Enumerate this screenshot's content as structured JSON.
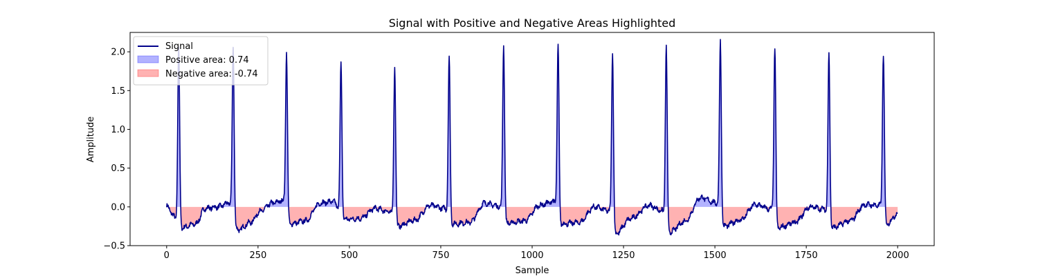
{
  "chart_data": {
    "type": "line",
    "title": "Signal with Positive and Negative Areas Highlighted",
    "xlabel": "Sample",
    "ylabel": "Amplitude",
    "xlim": [
      -100,
      2100
    ],
    "ylim": [
      -0.5,
      2.25
    ],
    "x_ticks": [
      0,
      250,
      500,
      750,
      1000,
      1250,
      1500,
      1750,
      2000
    ],
    "y_ticks": [
      -0.5,
      0.0,
      0.5,
      1.0,
      1.5,
      2.0
    ],
    "y_tick_labels": [
      "−0.5",
      "0.0",
      "0.5",
      "1.0",
      "1.5",
      "2.0"
    ],
    "grid": false,
    "legend_position": "top-left",
    "n_samples": 2000,
    "peaks": [
      {
        "x": 33,
        "y": 2.06
      },
      {
        "x": 182,
        "y": 2.06
      },
      {
        "x": 328,
        "y": 2.0
      },
      {
        "x": 477,
        "y": 1.84
      },
      {
        "x": 624,
        "y": 1.81
      },
      {
        "x": 773,
        "y": 1.93
      },
      {
        "x": 922,
        "y": 2.09
      },
      {
        "x": 1071,
        "y": 2.07
      },
      {
        "x": 1220,
        "y": 1.99
      },
      {
        "x": 1367,
        "y": 2.06
      },
      {
        "x": 1515,
        "y": 2.14
      },
      {
        "x": 1664,
        "y": 2.06
      },
      {
        "x": 1812,
        "y": 1.98
      },
      {
        "x": 1961,
        "y": 1.98
      }
    ],
    "baseline_dips": [
      {
        "x": 40,
        "y": -0.27
      },
      {
        "x": 80,
        "y": -0.22
      },
      {
        "x": 105,
        "y": -0.02
      },
      {
        "x": 140,
        "y": 0.0
      },
      {
        "x": 170,
        "y": 0.05
      },
      {
        "x": 195,
        "y": -0.3
      },
      {
        "x": 230,
        "y": -0.2
      },
      {
        "x": 255,
        "y": -0.06
      },
      {
        "x": 290,
        "y": 0.05
      },
      {
        "x": 318,
        "y": 0.08
      },
      {
        "x": 338,
        "y": -0.22
      },
      {
        "x": 380,
        "y": -0.18
      },
      {
        "x": 420,
        "y": 0.05
      },
      {
        "x": 455,
        "y": 0.07
      },
      {
        "x": 487,
        "y": -0.16
      },
      {
        "x": 530,
        "y": -0.15
      },
      {
        "x": 570,
        "y": -0.02
      },
      {
        "x": 610,
        "y": -0.06
      },
      {
        "x": 632,
        "y": -0.25
      },
      {
        "x": 680,
        "y": -0.17
      },
      {
        "x": 720,
        "y": 0.02
      },
      {
        "x": 760,
        "y": -0.02
      },
      {
        "x": 782,
        "y": -0.22
      },
      {
        "x": 830,
        "y": -0.2
      },
      {
        "x": 870,
        "y": 0.05
      },
      {
        "x": 910,
        "y": 0.01
      },
      {
        "x": 930,
        "y": -0.21
      },
      {
        "x": 980,
        "y": -0.18
      },
      {
        "x": 1020,
        "y": 0.02
      },
      {
        "x": 1060,
        "y": 0.07
      },
      {
        "x": 1080,
        "y": -0.22
      },
      {
        "x": 1130,
        "y": -0.2
      },
      {
        "x": 1170,
        "y": 0.0
      },
      {
        "x": 1210,
        "y": -0.05
      },
      {
        "x": 1228,
        "y": -0.35
      },
      {
        "x": 1270,
        "y": -0.15
      },
      {
        "x": 1320,
        "y": 0.02
      },
      {
        "x": 1355,
        "y": -0.05
      },
      {
        "x": 1375,
        "y": -0.33
      },
      {
        "x": 1420,
        "y": -0.18
      },
      {
        "x": 1460,
        "y": 0.12
      },
      {
        "x": 1505,
        "y": 0.05
      },
      {
        "x": 1524,
        "y": -0.25
      },
      {
        "x": 1570,
        "y": -0.17
      },
      {
        "x": 1610,
        "y": 0.03
      },
      {
        "x": 1655,
        "y": -0.03
      },
      {
        "x": 1672,
        "y": -0.27
      },
      {
        "x": 1720,
        "y": -0.2
      },
      {
        "x": 1760,
        "y": 0.0
      },
      {
        "x": 1800,
        "y": -0.03
      },
      {
        "x": 1820,
        "y": -0.27
      },
      {
        "x": 1870,
        "y": -0.18
      },
      {
        "x": 1910,
        "y": 0.03
      },
      {
        "x": 1950,
        "y": 0.02
      },
      {
        "x": 1970,
        "y": -0.22
      },
      {
        "x": 2000,
        "y": -0.09
      }
    ],
    "series": [
      {
        "name": "Signal",
        "color": "#00008b"
      },
      {
        "name": "Positive area: 0.74",
        "color": "#0000ff",
        "fill_alpha": 0.3
      },
      {
        "name": "Negative area: -0.74",
        "color": "#ff0000",
        "fill_alpha": 0.3
      }
    ]
  }
}
